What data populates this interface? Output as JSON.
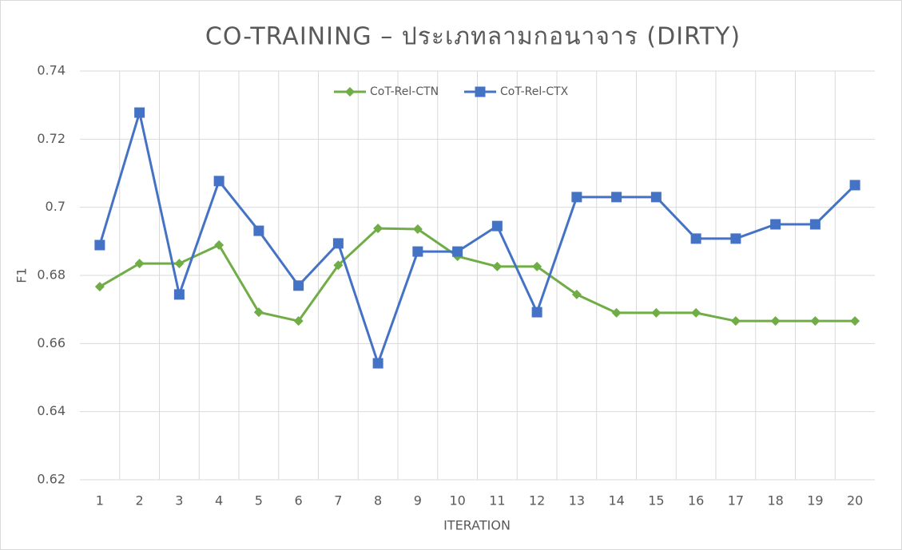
{
  "chart_data": {
    "type": "line",
    "title": "CO-TRAINING – ประเภทลามกอนาจาร (DIRTY)",
    "x_label": "ITERATION",
    "y_label": "F1",
    "categories": [
      "1",
      "2",
      "3",
      "4",
      "5",
      "6",
      "7",
      "8",
      "9",
      "10",
      "11",
      "12",
      "13",
      "14",
      "15",
      "16",
      "17",
      "18",
      "19",
      "20"
    ],
    "series": [
      {
        "name": "CoT-Rel-CTN",
        "color": "#70ad47",
        "marker": "diamond",
        "values": [
          0.6767,
          0.6835,
          0.6835,
          0.6889,
          0.6692,
          0.6666,
          0.683,
          0.6938,
          0.6936,
          0.6856,
          0.6826,
          0.6826,
          0.6744,
          0.669,
          0.669,
          0.669,
          0.6666,
          0.6666,
          0.6666,
          0.6666
        ]
      },
      {
        "name": "CoT-Rel-CTX",
        "color": "#4472c4",
        "marker": "square",
        "values": [
          0.6889,
          0.7278,
          0.6744,
          0.7077,
          0.6931,
          0.677,
          0.6894,
          0.6542,
          0.687,
          0.687,
          0.6945,
          0.6692,
          0.703,
          0.703,
          0.703,
          0.6908,
          0.6908,
          0.695,
          0.695,
          0.7065
        ]
      }
    ],
    "ylim": [
      0.62,
      0.74
    ],
    "yticks": [
      0.62,
      0.64,
      0.66,
      0.68,
      0.7,
      0.72,
      0.74
    ],
    "grid": true,
    "legend": "top"
  }
}
